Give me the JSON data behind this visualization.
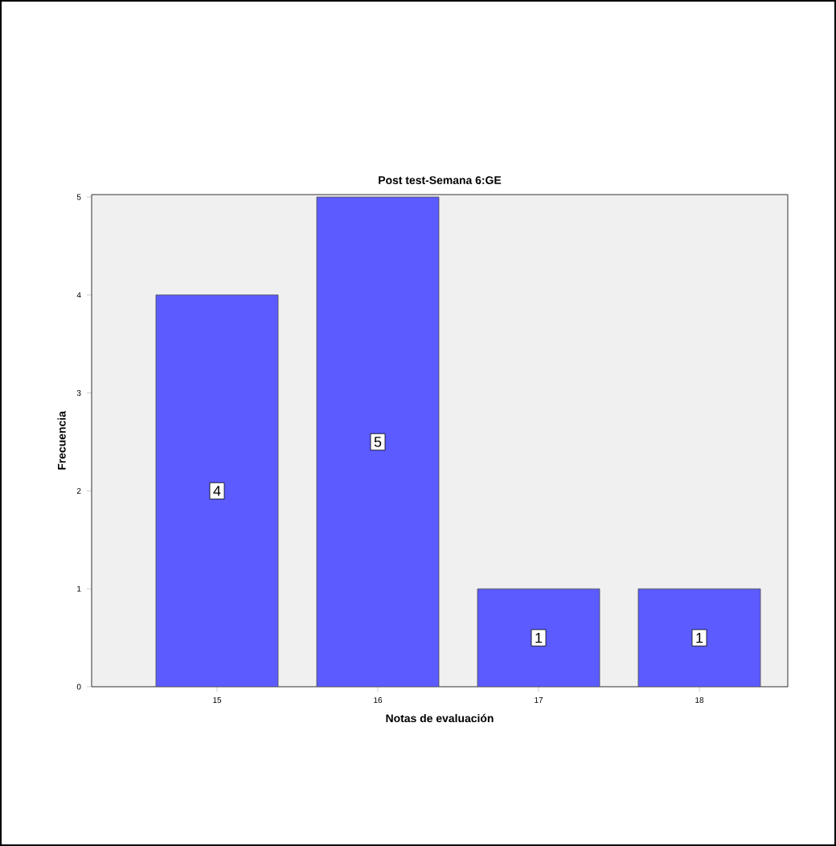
{
  "chart_data": {
    "type": "bar",
    "title": "Post test-Semana 6:GE",
    "xlabel": "Notas de evaluación",
    "ylabel": "Frecuencia",
    "categories": [
      "15",
      "16",
      "17",
      "18"
    ],
    "values": [
      4,
      5,
      1,
      1
    ],
    "color": "#5b5bff",
    "ylim": [
      0,
      5
    ],
    "yticks": [
      0,
      1,
      2,
      3,
      4,
      5
    ],
    "data_labels": true
  }
}
